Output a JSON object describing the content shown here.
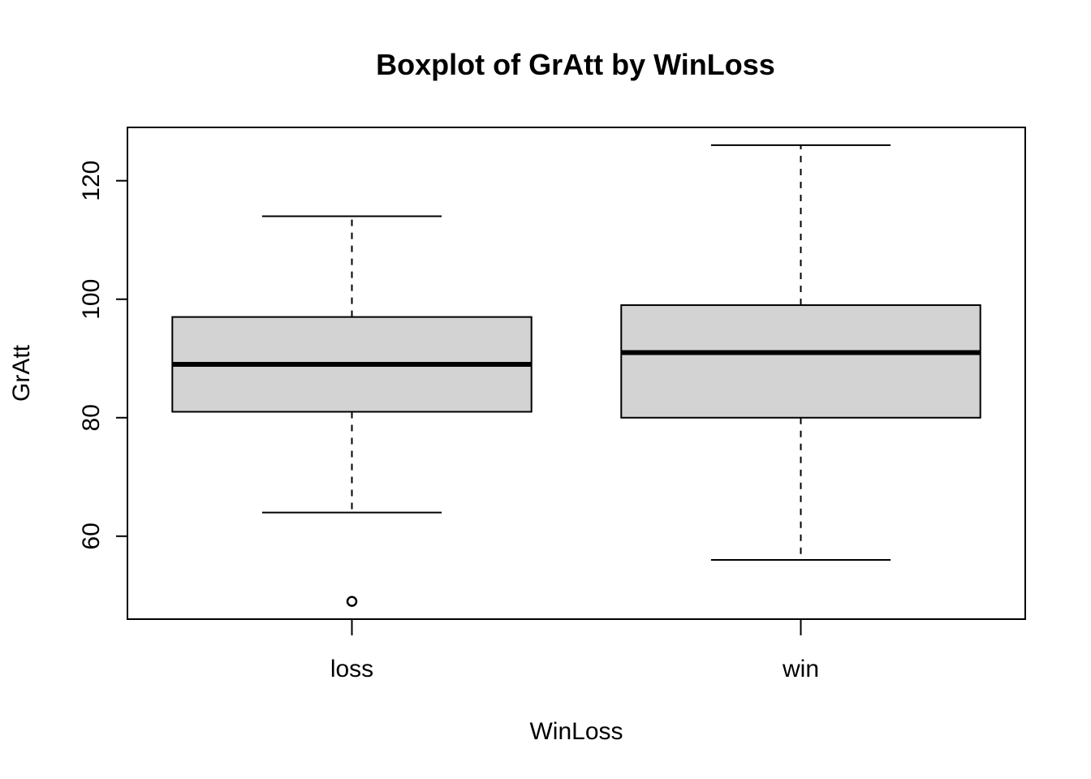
{
  "chart_data": {
    "type": "boxplot",
    "title": "Boxplot of GrAtt by WinLoss",
    "xlabel": "WinLoss",
    "ylabel": "GrAtt",
    "categories": [
      "loss",
      "win"
    ],
    "boxes": [
      {
        "category": "loss",
        "whisker_low": 64,
        "q1": 81,
        "median": 89,
        "q3": 97,
        "whisker_high": 114,
        "outliers": [
          49
        ]
      },
      {
        "category": "win",
        "whisker_low": 56,
        "q1": 80,
        "median": 91,
        "q3": 99,
        "whisker_high": 126,
        "outliers": []
      }
    ],
    "ylim": [
      46,
      129
    ],
    "yticks": [
      60,
      80,
      100,
      120
    ],
    "grid": false,
    "box_fill": "#d3d3d3",
    "line_color": "#000000"
  }
}
